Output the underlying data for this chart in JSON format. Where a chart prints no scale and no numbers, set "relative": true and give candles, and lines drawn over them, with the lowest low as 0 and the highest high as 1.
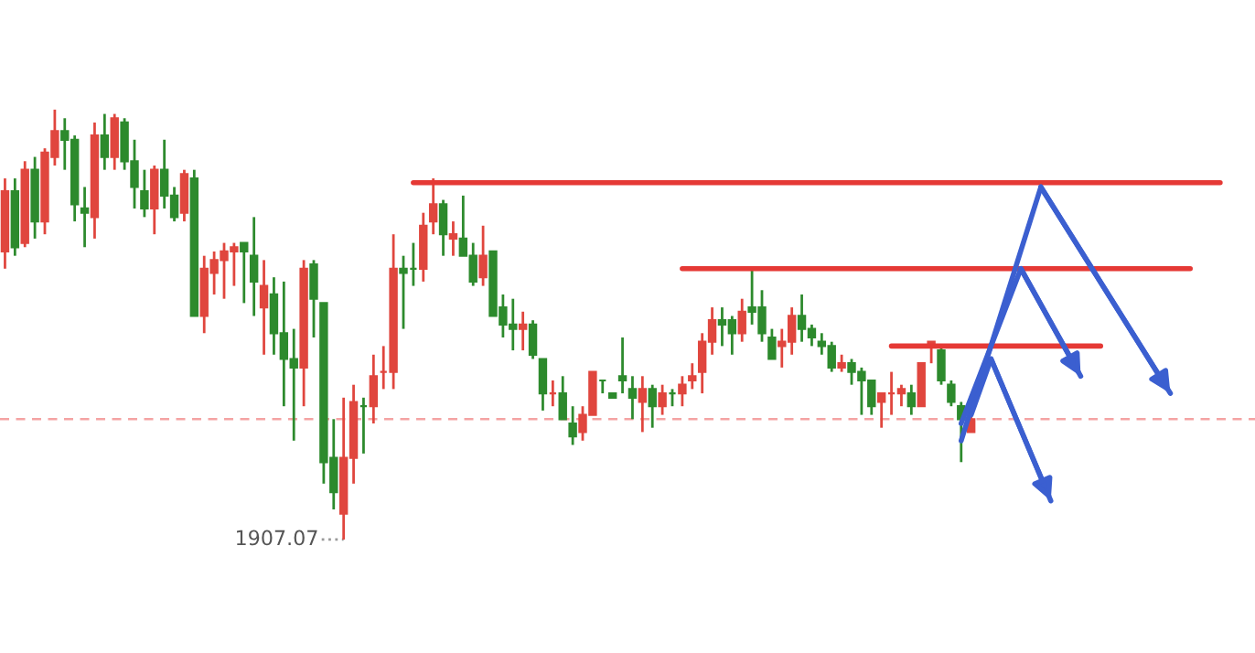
{
  "chart_data": {
    "type": "candlestick",
    "relative": true,
    "categories": [
      null,
      null,
      null,
      null,
      null,
      null,
      null,
      null,
      null,
      null,
      null,
      null,
      null,
      null,
      null,
      null,
      null,
      null,
      null,
      null,
      null,
      null,
      null,
      null,
      null,
      null,
      null,
      null,
      null,
      null,
      null,
      null,
      null,
      null,
      null,
      null,
      null,
      null,
      null,
      null,
      null,
      null,
      null,
      null,
      null,
      null,
      null,
      null,
      null,
      null,
      null,
      null,
      null,
      null,
      null,
      null,
      null,
      null,
      null,
      null,
      null,
      null,
      null,
      null,
      null,
      null,
      null,
      null,
      null,
      null,
      null,
      null,
      null,
      null,
      null,
      null,
      null,
      null,
      null,
      null,
      null,
      null,
      null,
      null,
      null,
      null,
      null,
      null,
      null,
      null,
      null,
      null,
      null,
      null,
      null,
      null,
      null,
      null,
      null,
      null,
      null,
      null,
      null,
      null,
      null,
      null,
      null,
      null,
      null,
      null,
      null,
      null,
      null,
      null,
      null,
      null,
      null,
      null,
      null,
      null,
      null,
      null,
      null,
      null,
      null,
      null
    ],
    "ohlc": [
      [
        0.67,
        0.84,
        0.63,
        0.81
      ],
      [
        0.81,
        0.84,
        0.66,
        0.68
      ],
      [
        0.69,
        0.88,
        0.68,
        0.86
      ],
      [
        0.86,
        0.89,
        0.7,
        0.74
      ],
      [
        0.74,
        0.91,
        0.71,
        0.9
      ],
      [
        0.89,
        1.0,
        0.87,
        0.95
      ],
      [
        0.95,
        0.98,
        0.86,
        0.93
      ],
      [
        0.93,
        0.94,
        0.74,
        0.78
      ],
      [
        0.77,
        0.82,
        0.68,
        0.76
      ],
      [
        0.75,
        0.97,
        0.7,
        0.94
      ],
      [
        0.94,
        0.99,
        0.86,
        0.89
      ],
      [
        0.89,
        0.99,
        0.86,
        0.98
      ],
      [
        0.97,
        0.98,
        0.86,
        0.88
      ],
      [
        0.88,
        0.93,
        0.77,
        0.82
      ],
      [
        0.81,
        0.86,
        0.75,
        0.77
      ],
      [
        0.77,
        0.87,
        0.71,
        0.86
      ],
      [
        0.86,
        0.93,
        0.77,
        0.8
      ],
      [
        0.8,
        0.82,
        0.74,
        0.75
      ],
      [
        0.76,
        0.86,
        0.74,
        0.85
      ],
      [
        0.84,
        0.86,
        0.52,
        0.52
      ],
      [
        0.52,
        0.66,
        0.48,
        0.63
      ],
      [
        0.62,
        0.67,
        0.57,
        0.65
      ],
      [
        0.65,
        0.69,
        0.56,
        0.67
      ],
      [
        0.67,
        0.69,
        0.59,
        0.68
      ],
      [
        0.69,
        0.69,
        0.55,
        0.67
      ],
      [
        0.66,
        0.75,
        0.52,
        0.6
      ],
      [
        0.54,
        0.65,
        0.43,
        0.59
      ],
      [
        0.57,
        0.61,
        0.43,
        0.48
      ],
      [
        0.48,
        0.6,
        0.31,
        0.42
      ],
      [
        0.42,
        0.49,
        0.23,
        0.4
      ],
      [
        0.4,
        0.65,
        0.31,
        0.63
      ],
      [
        0.64,
        0.65,
        0.47,
        0.56
      ],
      [
        0.55,
        0.55,
        0.13,
        0.18
      ],
      [
        0.19,
        0.28,
        0.07,
        0.11
      ],
      [
        0.06,
        0.33,
        0,
        0.19
      ],
      [
        0.19,
        0.36,
        0.13,
        0.32
      ],
      [
        0.31,
        0.33,
        0.2,
        0.31
      ],
      [
        0.31,
        0.43,
        0.27,
        0.38
      ],
      [
        0.39,
        0.45,
        0.35,
        0.39
      ],
      [
        0.39,
        0.71,
        0.35,
        0.63
      ],
      [
        0.63,
        0.66,
        0.49,
        0.62
      ],
      [
        0.63,
        0.69,
        0.59,
        0.63
      ],
      [
        0.63,
        0.76,
        0.6,
        0.73
      ],
      [
        0.74,
        0.84,
        0.71,
        0.78
      ],
      [
        0.78,
        0.79,
        0.66,
        0.71
      ],
      [
        0.7,
        0.74,
        0.66,
        0.71
      ],
      [
        0.7,
        0.8,
        0.66,
        0.66
      ],
      [
        0.66,
        0.69,
        0.59,
        0.6
      ],
      [
        0.61,
        0.73,
        0.59,
        0.66
      ],
      [
        0.67,
        0.67,
        0.52,
        0.52
      ],
      [
        0.54,
        0.57,
        0.47,
        0.5
      ],
      [
        0.5,
        0.56,
        0.44,
        0.49
      ],
      [
        0.49,
        0.53,
        0.44,
        0.5
      ],
      [
        0.5,
        0.51,
        0.42,
        0.43
      ],
      [
        0.42,
        0.42,
        0.3,
        0.34
      ],
      [
        0.34,
        0.37,
        0.31,
        0.34
      ],
      [
        0.34,
        0.38,
        0.28,
        0.28
      ],
      [
        0.27,
        0.31,
        0.22,
        0.24
      ],
      [
        0.25,
        0.31,
        0.23,
        0.29
      ],
      [
        0.29,
        0.39,
        0.29,
        0.39
      ],
      [
        0.37,
        0.37,
        0.34,
        0.37
      ],
      [
        0.34,
        0.34,
        0.33,
        0.33
      ],
      [
        0.38,
        0.47,
        0.34,
        0.37
      ],
      [
        0.35,
        0.38,
        0.28,
        0.33
      ],
      [
        0.32,
        0.38,
        0.25,
        0.35
      ],
      [
        0.35,
        0.36,
        0.26,
        0.31
      ],
      [
        0.31,
        0.36,
        0.29,
        0.34
      ],
      [
        0.34,
        0.35,
        0.31,
        0.34
      ],
      [
        0.34,
        0.38,
        0.31,
        0.36
      ],
      [
        0.37,
        0.41,
        0.35,
        0.38
      ],
      [
        0.39,
        0.48,
        0.34,
        0.46
      ],
      [
        0.46,
        0.54,
        0.43,
        0.51
      ],
      [
        0.51,
        0.54,
        0.45,
        0.5
      ],
      [
        0.51,
        0.52,
        0.43,
        0.48
      ],
      [
        0.48,
        0.56,
        0.46,
        0.53
      ],
      [
        0.54,
        0.63,
        0.5,
        0.53
      ],
      [
        0.54,
        0.58,
        0.46,
        0.48
      ],
      [
        0.47,
        0.49,
        0.42,
        0.42
      ],
      [
        0.45,
        0.49,
        0.4,
        0.46
      ],
      [
        0.46,
        0.54,
        0.43,
        0.52
      ],
      [
        0.52,
        0.57,
        0.46,
        0.49
      ],
      [
        0.49,
        0.5,
        0.45,
        0.47
      ],
      [
        0.46,
        0.48,
        0.43,
        0.45
      ],
      [
        0.45,
        0.46,
        0.39,
        0.4
      ],
      [
        0.4,
        0.43,
        0.39,
        0.41
      ],
      [
        0.41,
        0.42,
        0.36,
        0.39
      ],
      [
        0.39,
        0.4,
        0.29,
        0.37
      ],
      [
        0.37,
        0.37,
        0.29,
        0.31
      ],
      [
        0.32,
        0.34,
        0.26,
        0.34
      ],
      [
        0.34,
        0.39,
        0.29,
        0.34
      ],
      [
        0.34,
        0.36,
        0.31,
        0.35
      ],
      [
        0.34,
        0.36,
        0.29,
        0.31
      ],
      [
        0.31,
        0.41,
        0.31,
        0.41
      ],
      [
        0.45,
        0.46,
        0.41,
        0.46
      ],
      [
        0.44,
        0.45,
        0.36,
        0.37
      ],
      [
        0.36,
        0.37,
        0.31,
        0.32
      ],
      [
        0.31,
        0.32,
        0.18,
        0.28
      ],
      [
        0.25,
        0.29,
        0.25,
        0.28
      ],
      null,
      null,
      null,
      null,
      null,
      null,
      null,
      null,
      null,
      null,
      null,
      null,
      null,
      null,
      null,
      null,
      null,
      null,
      null,
      null,
      null,
      null,
      null,
      null,
      null,
      null,
      null,
      null
    ],
    "colors": [
      "#e0463e",
      "#2d8a2d",
      "#e0463e",
      "#2d8a2d",
      "#e0463e",
      "#e0463e",
      "#2d8a2d",
      "#2d8a2d",
      "#2d8a2d",
      "#e0463e",
      "#2d8a2d",
      "#e0463e",
      "#2d8a2d",
      "#2d8a2d",
      "#2d8a2d",
      "#e0463e",
      "#2d8a2d",
      "#2d8a2d",
      "#e0463e",
      "#2d8a2d",
      "#e0463e",
      "#e0463e",
      "#e0463e",
      "#e0463e",
      "#2d8a2d",
      "#2d8a2d",
      "#e0463e",
      "#2d8a2d",
      "#2d8a2d",
      "#2d8a2d",
      "#e0463e",
      "#2d8a2d",
      "#2d8a2d",
      "#2d8a2d",
      "#e0463e",
      "#e0463e",
      "#2d8a2d",
      "#e0463e",
      "#e0463e",
      "#e0463e",
      "#2d8a2d",
      "#2d8a2d",
      "#e0463e",
      "#e0463e",
      "#2d8a2d",
      "#e0463e",
      "#2d8a2d",
      "#2d8a2d",
      "#e0463e",
      "#2d8a2d",
      "#2d8a2d",
      "#2d8a2d",
      "#e0463e",
      "#2d8a2d",
      "#2d8a2d",
      "#e0463e",
      "#2d8a2d",
      "#2d8a2d",
      "#e0463e",
      "#e0463e",
      "#2d8a2d",
      "#2d8a2d",
      "#2d8a2d",
      "#2d8a2d",
      "#e0463e",
      "#2d8a2d",
      "#e0463e",
      "#2d8a2d",
      "#e0463e",
      "#e0463e",
      "#e0463e",
      "#e0463e",
      "#2d8a2d",
      "#2d8a2d",
      "#e0463e",
      "#2d8a2d",
      "#2d8a2d",
      "#2d8a2d",
      "#e0463e",
      "#e0463e",
      "#2d8a2d",
      "#2d8a2d",
      "#2d8a2d",
      "#2d8a2d",
      "#e0463e",
      "#2d8a2d",
      "#2d8a2d",
      "#2d8a2d",
      "#e0463e",
      "#e0463e",
      "#e0463e",
      "#2d8a2d",
      "#e0463e",
      "#e0463e",
      "#2d8a2d",
      "#2d8a2d",
      "#2d8a2d",
      "#e0463e",
      null,
      null,
      null,
      null,
      null,
      null,
      null,
      null,
      null,
      null,
      null,
      null,
      null,
      null,
      null,
      null,
      null,
      null,
      null,
      null,
      null,
      null,
      null,
      null,
      null,
      null,
      null,
      null
    ],
    "series": [
      {
        "type": "line",
        "color": "#e53935",
        "values": [
          null,
          null,
          null,
          null,
          null,
          null,
          null,
          null,
          null,
          null,
          null,
          null,
          null,
          null,
          null,
          null,
          null,
          null,
          null,
          null,
          null,
          null,
          null,
          null,
          null,
          null,
          null,
          null,
          null,
          null,
          null,
          null,
          null,
          null,
          null,
          null,
          null,
          null,
          null,
          null,
          null,
          0.83,
          null,
          null,
          null,
          null,
          null,
          null,
          null,
          null,
          null,
          null,
          null,
          null,
          null,
          null,
          null,
          null,
          null,
          null,
          null,
          null,
          null,
          null,
          null,
          null,
          null,
          null,
          null,
          null,
          null,
          null,
          null,
          null,
          null,
          null,
          null,
          null,
          null,
          null,
          null,
          null,
          null,
          null,
          null,
          null,
          null,
          null,
          null,
          null,
          null,
          null,
          null,
          null,
          null,
          null,
          null,
          null,
          null,
          null,
          null,
          null,
          null,
          null,
          null,
          null,
          null,
          null,
          null,
          null,
          null,
          null,
          null,
          null,
          null,
          null,
          null,
          null,
          null,
          null,
          null,
          null,
          0.83,
          null,
          null,
          null
        ]
      },
      {
        "type": "line",
        "color": "#e53935",
        "values": [
          null,
          null,
          null,
          null,
          null,
          null,
          null,
          null,
          null,
          null,
          null,
          null,
          null,
          null,
          null,
          null,
          null,
          null,
          null,
          null,
          null,
          null,
          null,
          null,
          null,
          null,
          null,
          null,
          null,
          null,
          null,
          null,
          null,
          null,
          null,
          null,
          null,
          null,
          null,
          null,
          null,
          null,
          null,
          null,
          null,
          null,
          null,
          null,
          null,
          null,
          null,
          null,
          null,
          null,
          null,
          null,
          null,
          null,
          null,
          null,
          null,
          null,
          null,
          null,
          null,
          null,
          null,
          null,
          0.63,
          null,
          null,
          null,
          null,
          null,
          null,
          null,
          null,
          null,
          null,
          null,
          null,
          null,
          null,
          null,
          null,
          null,
          null,
          null,
          null,
          null,
          null,
          null,
          null,
          null,
          null,
          null,
          null,
          null,
          null,
          null,
          null,
          null,
          null,
          null,
          null,
          null,
          null,
          null,
          null,
          null,
          null,
          null,
          null,
          null,
          null,
          null,
          null,
          null,
          null,
          0.63,
          null,
          null,
          null,
          null,
          null,
          null
        ]
      },
      {
        "type": "line",
        "color": "#e53935",
        "values": [
          null,
          null,
          null,
          null,
          null,
          null,
          null,
          null,
          null,
          null,
          null,
          null,
          null,
          null,
          null,
          null,
          null,
          null,
          null,
          null,
          null,
          null,
          null,
          null,
          null,
          null,
          null,
          null,
          null,
          null,
          null,
          null,
          null,
          null,
          null,
          null,
          null,
          null,
          null,
          null,
          null,
          null,
          null,
          null,
          null,
          null,
          null,
          null,
          null,
          null,
          null,
          null,
          null,
          null,
          null,
          null,
          null,
          null,
          null,
          null,
          null,
          null,
          null,
          null,
          null,
          null,
          null,
          null,
          null,
          null,
          null,
          null,
          null,
          null,
          null,
          null,
          null,
          null,
          null,
          null,
          null,
          null,
          null,
          null,
          null,
          null,
          null,
          null,
          null,
          0.45,
          null,
          null,
          null,
          null,
          null,
          null,
          null,
          null,
          null,
          null,
          null,
          null,
          null,
          null,
          null,
          null,
          null,
          null,
          null,
          null,
          0.45,
          null,
          null,
          null,
          null,
          null,
          null,
          null,
          null,
          null,
          null,
          null,
          null,
          null,
          null,
          null
        ]
      },
      {
        "type": "line",
        "color": "#3b5fd0",
        "values": [
          null,
          null,
          null,
          null,
          null,
          null,
          null,
          null,
          null,
          null,
          null,
          null,
          null,
          null,
          null,
          null,
          null,
          null,
          null,
          null,
          null,
          null,
          null,
          null,
          null,
          null,
          null,
          null,
          null,
          null,
          null,
          null,
          null,
          null,
          null,
          null,
          null,
          null,
          null,
          null,
          null,
          null,
          null,
          null,
          null,
          null,
          null,
          null,
          null,
          null,
          null,
          null,
          null,
          null,
          null,
          null,
          null,
          null,
          null,
          null,
          null,
          null,
          null,
          null,
          null,
          null,
          null,
          null,
          null,
          null,
          null,
          null,
          null,
          null,
          null,
          null,
          null,
          null,
          null,
          null,
          null,
          null,
          null,
          null,
          null,
          null,
          null,
          null,
          null,
          null,
          null,
          null,
          null,
          null,
          null,
          null,
          0.23,
          null,
          null,
          null,
          null,
          null,
          null,
          null,
          0.82,
          null,
          null,
          null,
          null,
          null,
          null,
          null,
          null,
          null,
          null,
          null,
          null,
          0.34,
          null,
          null,
          null,
          null,
          null,
          null,
          null,
          null
        ]
      },
      {
        "type": "line",
        "color": "#3b5fd0",
        "values": [
          null,
          null,
          null,
          null,
          null,
          null,
          null,
          null,
          null,
          null,
          null,
          null,
          null,
          null,
          null,
          null,
          null,
          null,
          null,
          null,
          null,
          null,
          null,
          null,
          null,
          null,
          null,
          null,
          null,
          null,
          null,
          null,
          null,
          null,
          null,
          null,
          null,
          null,
          null,
          null,
          null,
          null,
          null,
          null,
          null,
          null,
          null,
          null,
          null,
          null,
          null,
          null,
          null,
          null,
          null,
          null,
          null,
          null,
          null,
          null,
          null,
          null,
          null,
          null,
          null,
          null,
          null,
          null,
          null,
          null,
          null,
          null,
          null,
          null,
          null,
          null,
          null,
          null,
          null,
          null,
          null,
          null,
          null,
          null,
          null,
          null,
          null,
          null,
          null,
          null,
          null,
          null,
          null,
          null,
          null,
          null,
          0.27,
          null,
          null,
          null,
          null,
          null,
          0.63,
          null,
          null,
          null,
          null,
          null,
          0.38,
          null,
          null,
          null,
          null,
          null,
          null,
          null,
          null,
          null,
          null,
          null,
          null,
          null,
          null,
          null,
          null,
          null
        ]
      },
      {
        "type": "line",
        "color": "#3b5fd0",
        "values": [
          null,
          null,
          null,
          null,
          null,
          null,
          null,
          null,
          null,
          null,
          null,
          null,
          null,
          null,
          null,
          null,
          null,
          null,
          null,
          null,
          null,
          null,
          null,
          null,
          null,
          null,
          null,
          null,
          null,
          null,
          null,
          null,
          null,
          null,
          null,
          null,
          null,
          null,
          null,
          null,
          null,
          null,
          null,
          null,
          null,
          null,
          null,
          null,
          null,
          null,
          null,
          null,
          null,
          null,
          null,
          null,
          null,
          null,
          null,
          null,
          null,
          null,
          null,
          null,
          null,
          null,
          null,
          null,
          null,
          null,
          null,
          null,
          null,
          null,
          null,
          null,
          null,
          null,
          null,
          null,
          null,
          null,
          null,
          null,
          null,
          null,
          null,
          null,
          null,
          null,
          null,
          null,
          null,
          null,
          null,
          null,
          null,
          0.29,
          null,
          0.42,
          null,
          null,
          null,
          null,
          null,
          0.09,
          null,
          null,
          null,
          null,
          null,
          null,
          null,
          null,
          null,
          null,
          null,
          null,
          null,
          null,
          null,
          null,
          null,
          null,
          null,
          null
        ]
      }
    ],
    "ref_lines": [
      {
        "axis": "y",
        "value": 0.28,
        "color": "#f4a3a3",
        "line_style": "dashed"
      }
    ],
    "annotations": [
      "1907.07"
    ]
  }
}
